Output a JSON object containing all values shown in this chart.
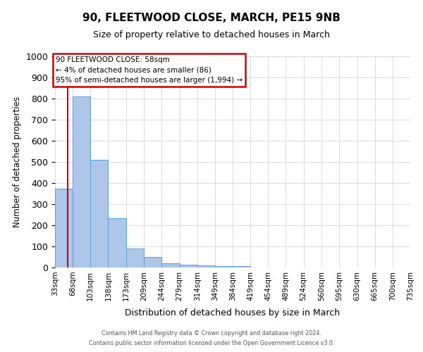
{
  "title": "90, FLEETWOOD CLOSE, MARCH, PE15 9NB",
  "subtitle": "Size of property relative to detached houses in March",
  "xlabel": "Distribution of detached houses by size in March",
  "ylabel": "Number of detached properties",
  "bin_edges": [
    33,
    68,
    103,
    138,
    173,
    209,
    244,
    279,
    314,
    349,
    384,
    419,
    454,
    489,
    524,
    560,
    595,
    630,
    665,
    700,
    735
  ],
  "bar_heights": [
    375,
    810,
    510,
    235,
    90,
    50,
    20,
    15,
    10,
    8,
    8,
    0,
    0,
    0,
    0,
    0,
    0,
    0,
    0,
    0
  ],
  "bar_color": "#aec6e8",
  "bar_edge_color": "#5a9fd4",
  "property_size": 58,
  "red_line_color": "#cc0000",
  "annotation_line1": "90 FLEETWOOD CLOSE: 58sqm",
  "annotation_line2": "← 4% of detached houses are smaller (86)",
  "annotation_line3": "95% of semi-detached houses are larger (1,994) →",
  "annotation_box_color": "#cc0000",
  "ylim": [
    0,
    1000
  ],
  "yticks": [
    0,
    100,
    200,
    300,
    400,
    500,
    600,
    700,
    800,
    900,
    1000
  ],
  "x_tick_labels": [
    "33sqm",
    "68sqm",
    "103sqm",
    "138sqm",
    "173sqm",
    "209sqm",
    "244sqm",
    "279sqm",
    "314sqm",
    "349sqm",
    "384sqm",
    "419sqm",
    "454sqm",
    "489sqm",
    "524sqm",
    "560sqm",
    "595sqm",
    "630sqm",
    "665sqm",
    "700sqm",
    "735sqm"
  ],
  "footer_line1": "Contains HM Land Registry data © Crown copyright and database right 2024.",
  "footer_line2": "Contains public sector information licensed under the Open Government Licence v3.0.",
  "background_color": "#ffffff",
  "grid_color": "#cccccc"
}
